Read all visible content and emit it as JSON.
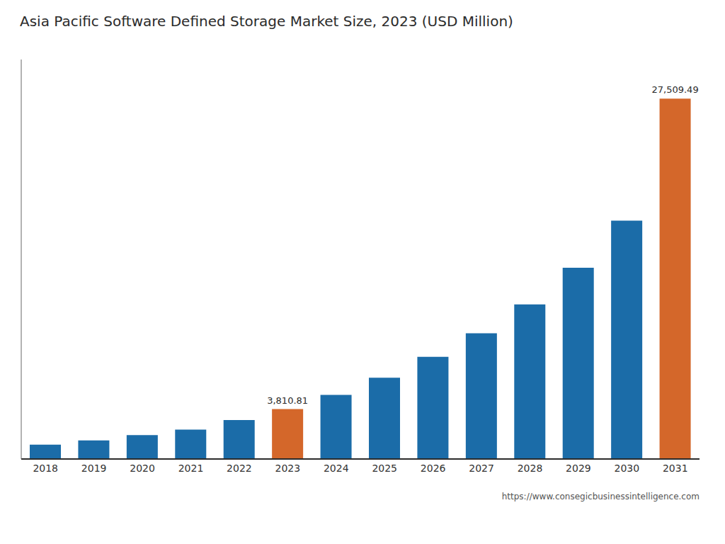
{
  "chart_data": {
    "type": "bar",
    "title": "Asia Pacific Software Defined Storage Market Size, 2023 (USD Million)",
    "categories": [
      "2018",
      "2019",
      "2020",
      "2021",
      "2022",
      "2023",
      "2024",
      "2025",
      "2026",
      "2027",
      "2028",
      "2029",
      "2030",
      "2031"
    ],
    "values": [
      1100,
      1420,
      1820,
      2250,
      2980,
      3810.81,
      4900,
      6200,
      7800,
      9600,
      11800,
      14600,
      18200,
      27509.49
    ],
    "colors": [
      "#1b6ca8",
      "#1b6ca8",
      "#1b6ca8",
      "#1b6ca8",
      "#1b6ca8",
      "#d4672a",
      "#1b6ca8",
      "#1b6ca8",
      "#1b6ca8",
      "#1b6ca8",
      "#1b6ca8",
      "#1b6ca8",
      "#1b6ca8",
      "#d4672a"
    ],
    "data_labels": true,
    "value_labels": [
      null,
      null,
      null,
      null,
      null,
      "3,810.81",
      null,
      null,
      null,
      null,
      null,
      null,
      null,
      "27,509.49"
    ],
    "ylim": [
      0,
      30500
    ],
    "tick_labels": "x",
    "grid": false,
    "annotations": [
      "https://www.consegicbusinessintelligence.com"
    ]
  }
}
